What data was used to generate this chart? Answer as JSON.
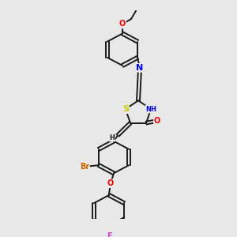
{
  "bg_color": "#e8e8e8",
  "bond_color": "#1a1a1a",
  "atom_colors": {
    "S": "#cccc00",
    "N": "#0000ee",
    "O": "#ee0000",
    "Br": "#cc6600",
    "F": "#cc44cc",
    "H": "#1a1a1a",
    "C": "#1a1a1a"
  },
  "bond_lw": 1.4,
  "ring_r": 20,
  "font_size": 7
}
